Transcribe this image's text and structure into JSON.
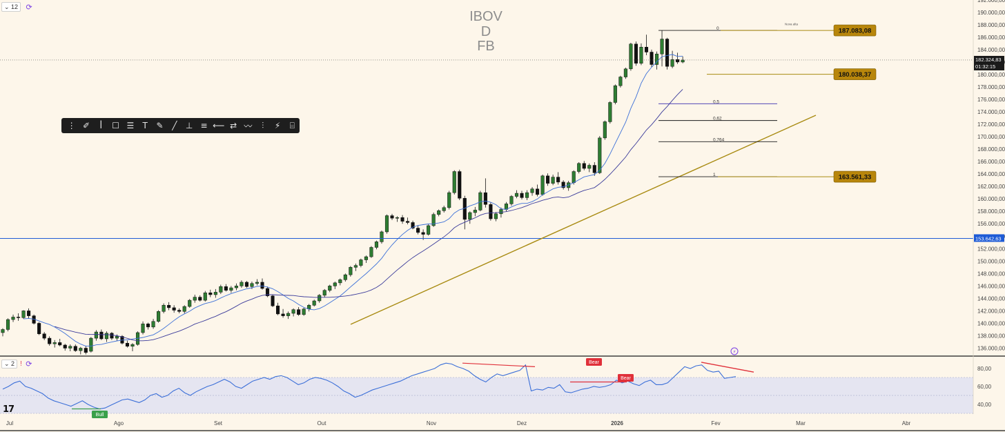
{
  "header": {
    "interval_badge": "12",
    "sync_icon": "sync-icon"
  },
  "watermark": {
    "line1": "IBOV",
    "line2": "D",
    "line3": "FB"
  },
  "toolbar": {
    "icons": [
      "drag-handle-icon",
      "brush-icon",
      "fib-icon",
      "rectangle-icon",
      "channel-icon",
      "text-icon",
      "path-icon",
      "ray-icon",
      "measure-icon",
      "horizontal-lines-icon",
      "arrow-left-icon",
      "range-icon",
      "zigzag-icon",
      "projection-icon",
      "magic-wand-icon",
      "template-icon"
    ],
    "glyphs": [
      "⋮",
      "✐",
      "ꟾ",
      "☐",
      "☰",
      "T",
      "✎",
      "╱",
      "⊥",
      "≡",
      "⟵",
      "⇄",
      "〰",
      "⫶",
      "⚡",
      "⌸"
    ]
  },
  "colors": {
    "background": "#fdf6ea",
    "bull_candle": "#2e7d32",
    "bear_candle": "#111111",
    "fast_ma": "#3b6fd8",
    "slow_ma": "#3a3a9a",
    "trendline": "#a88a10",
    "price_label": "#b8860b",
    "blue_level": "#1e5bd6",
    "rsi_line": "#3b6fd8",
    "rsi_band": "#dfe1f3",
    "divergence": "#e0303a",
    "bull_label": "#3aa04a"
  },
  "price_axis": {
    "labels": [
      "192.000,00",
      "190.000,00",
      "188.000,00",
      "186.000,00",
      "184.000,00",
      "182.000,00",
      "180.000,00",
      "178.000,00",
      "176.000,00",
      "174.000,00",
      "172.000,00",
      "170.000,00",
      "168.000,00",
      "166.000,00",
      "164.000,00",
      "162.000,00",
      "160.000,00",
      "158.000,00",
      "156.000,00",
      "154.000,00",
      "152.000,00",
      "150.000,00",
      "148.000,00",
      "146.000,00",
      "144.000,00",
      "142.000,00",
      "140.000,00",
      "138.000,00",
      "136.000,00"
    ],
    "current_price": "182.324,83",
    "countdown": "01:32:15",
    "blue_level_label": "153.642,63"
  },
  "rsi_axis": {
    "labels": [
      "80,00",
      "60,00",
      "40,00"
    ]
  },
  "time_axis": {
    "labels": [
      "Jul",
      "Ago",
      "Set",
      "Out",
      "Nov",
      "Dez",
      "2026",
      "Fev",
      "Mar",
      "Abr"
    ]
  },
  "fib_levels": [
    {
      "ratio": "0",
      "value": 187083.08
    },
    {
      "ratio": "0,5",
      "value": 175300
    },
    {
      "ratio": "0,62",
      "value": 172600
    },
    {
      "ratio": "0,764",
      "value": 169200
    },
    {
      "ratio": "1",
      "value": 163561.33
    }
  ],
  "price_tags": [
    "187.083,08",
    "180.038,37",
    "163.561,33"
  ],
  "rsi_tags": {
    "bear1": "Bear",
    "bear2": "Bear",
    "bull": "Bull"
  },
  "small_notes": {
    "top_note": "Nova alta"
  },
  "pane2": {
    "badge": "2"
  },
  "chart_data": {
    "type": "candlestick",
    "title": "IBOV",
    "timeframe": "D",
    "ylim": [
      135000,
      192500
    ],
    "rsi_ylim": [
      30,
      90
    ],
    "rsi_band": [
      30,
      70
    ],
    "candles": [
      [
        138500,
        139200,
        137900,
        139000
      ],
      [
        139000,
        140800,
        138700,
        140600
      ],
      [
        140600,
        141400,
        140200,
        141000
      ],
      [
        141000,
        141600,
        140400,
        140900
      ],
      [
        140900,
        142100,
        140700,
        142000
      ],
      [
        142000,
        142400,
        140800,
        141200
      ],
      [
        141200,
        141400,
        139800,
        140000
      ],
      [
        140000,
        140200,
        138100,
        138300
      ],
      [
        138300,
        138600,
        137300,
        137600
      ],
      [
        137600,
        137900,
        136400,
        136700
      ],
      [
        136700,
        137300,
        136100,
        136900
      ],
      [
        136900,
        137500,
        136300,
        136500
      ],
      [
        136500,
        136700,
        135600,
        136000
      ],
      [
        136000,
        136600,
        135500,
        136300
      ],
      [
        136300,
        136600,
        135400,
        135600
      ],
      [
        135600,
        136200,
        135000,
        136000
      ],
      [
        136000,
        136400,
        135000,
        135300
      ]
    ],
    "candles_2": [
      [
        135500,
        137800,
        135300,
        137600
      ],
      [
        137600,
        138900,
        137200,
        138600
      ],
      [
        138600,
        139000,
        137300,
        137500
      ],
      [
        137500,
        138700,
        137000,
        138400
      ],
      [
        138400,
        138600,
        137300,
        137600
      ],
      [
        137600,
        138200,
        137200,
        137900
      ],
      [
        137900,
        138100,
        136600,
        136800
      ],
      [
        136800,
        137200,
        136100,
        136300
      ],
      [
        136300,
        136800,
        135500,
        136600
      ],
      [
        136600,
        138700,
        136400,
        138500
      ],
      [
        138500,
        140300,
        138200,
        139900
      ],
      [
        139900,
        140100,
        139000,
        139400
      ],
      [
        139400,
        140700,
        139100,
        140300
      ],
      [
        140300,
        142100,
        140100,
        141900
      ],
      [
        141900,
        143200,
        141600,
        142900
      ],
      [
        142900,
        143400,
        142100,
        142500
      ],
      [
        142500,
        142900,
        141700,
        142100
      ],
      [
        142100,
        142400,
        141600,
        141900
      ],
      [
        141900,
        142900,
        141600,
        142700
      ],
      [
        142700,
        143900,
        142500,
        143700
      ],
      [
        143700,
        144600,
        143300,
        144200
      ],
      [
        144200,
        144500,
        143500,
        143700
      ],
      [
        143700,
        145200,
        143500,
        144900
      ],
      [
        144900,
        145400,
        144200,
        144600
      ],
      [
        144600,
        145500,
        144100,
        145000
      ],
      [
        145000,
        146200,
        144700,
        145900
      ],
      [
        145900,
        146300,
        145100,
        145300
      ],
      [
        145300,
        146000,
        144900,
        145700
      ],
      [
        145700,
        146400,
        145300,
        146000
      ],
      [
        146000,
        146900,
        145700,
        146600
      ],
      [
        146600,
        146800,
        145700,
        145900
      ],
      [
        145900,
        146700,
        145500,
        146400
      ],
      [
        146400,
        147100,
        146100,
        146600
      ],
      [
        146600,
        147200,
        145400,
        145600
      ],
      [
        145600,
        145900,
        144200,
        144400
      ],
      [
        144400,
        144600,
        142600,
        142800
      ],
      [
        142800,
        143300,
        141300,
        141500
      ],
      [
        141500,
        142300,
        140900,
        141200
      ],
      [
        141200,
        141900,
        140700,
        141600
      ],
      [
        141600,
        142400,
        141100,
        142200
      ],
      [
        142200,
        142600,
        141200,
        141400
      ],
      [
        141400,
        142500,
        141200,
        142300
      ],
      [
        142300,
        143100,
        141900,
        142900
      ],
      [
        142900,
        143800,
        142700,
        143600
      ],
      [
        143600,
        144700,
        143300,
        144500
      ],
      [
        144500,
        145500,
        144200,
        145300
      ],
      [
        145300,
        146200,
        145000,
        146000
      ],
      [
        146000,
        146700,
        145500,
        146500
      ],
      [
        146500,
        147200,
        146100,
        147000
      ],
      [
        147000,
        148000,
        146700,
        147800
      ],
      [
        147800,
        149200,
        147500,
        149000
      ],
      [
        149000,
        149600,
        148400,
        149300
      ],
      [
        149300,
        150400,
        149000,
        150200
      ],
      [
        150200,
        150900,
        149700,
        150700
      ],
      [
        150700,
        152400,
        150500,
        152200
      ],
      [
        152200,
        153300,
        151900,
        153100
      ],
      [
        153100,
        154900,
        152800,
        154700
      ],
      [
        154700,
        157500,
        154400,
        157300
      ],
      [
        157300,
        157600,
        156600,
        156900
      ],
      [
        156900,
        157200,
        156300,
        157000
      ],
      [
        157000,
        157400,
        156000,
        156400
      ],
      [
        156400,
        157000,
        155900,
        156200
      ],
      [
        156200,
        156500,
        155100,
        155300
      ],
      [
        155300,
        155700,
        154300,
        154600
      ],
      [
        154600,
        155100,
        153400,
        154300
      ],
      [
        154300,
        155900,
        154100,
        155700
      ],
      [
        155700,
        157800,
        155500,
        157500
      ],
      [
        157500,
        158300,
        157200,
        158100
      ],
      [
        158100,
        158900,
        157800,
        158600
      ],
      [
        158600,
        161300,
        158300,
        161000
      ],
      [
        161000,
        164600,
        160700,
        164400
      ],
      [
        164400,
        164700,
        159800,
        160100
      ],
      [
        160100,
        160500,
        155100,
        156700
      ],
      [
        156700,
        158000,
        156000,
        157800
      ],
      [
        157800,
        158700,
        157200,
        158200
      ],
      [
        158200,
        161300,
        158000,
        161000
      ],
      [
        161000,
        163300,
        158600,
        159100
      ],
      [
        159100,
        159400,
        156500,
        156800
      ],
      [
        156800,
        157900,
        156400,
        157600
      ],
      [
        157600,
        158600,
        157000,
        158300
      ],
      [
        158300,
        159500,
        158000,
        159200
      ],
      [
        159200,
        160600,
        158900,
        160400
      ],
      [
        160400,
        161400,
        160100,
        160900
      ],
      [
        160900,
        161300,
        159900,
        160200
      ],
      [
        160200,
        161400,
        159800,
        161000
      ],
      [
        161000,
        161900,
        160500,
        161600
      ],
      [
        161600,
        162300,
        160400,
        160700
      ],
      [
        160700,
        163900,
        160500,
        163700
      ],
      [
        163700,
        164100,
        162100,
        162500
      ],
      [
        162500,
        163900,
        162200,
        163500
      ],
      [
        163500,
        164300,
        162300,
        162700
      ],
      [
        162700,
        163000,
        161500,
        161800
      ],
      [
        161800,
        162900,
        161300,
        162600
      ],
      [
        162600,
        164600,
        162300,
        164400
      ],
      [
        164400,
        165900,
        164100,
        165700
      ],
      [
        165700,
        166100,
        164600,
        164900
      ],
      [
        164900,
        165700,
        164300,
        165400
      ],
      [
        165400,
        165900,
        163700,
        164200
      ],
      [
        164200,
        170100,
        164000,
        169800
      ],
      [
        169800,
        172600,
        169500,
        172400
      ],
      [
        172400,
        175700,
        172100,
        175500
      ],
      [
        175500,
        178400,
        175200,
        178200
      ],
      [
        178200,
        179800,
        177900,
        179600
      ],
      [
        179600,
        181100,
        179300,
        180900
      ],
      [
        180900,
        185100,
        180600,
        184900
      ],
      [
        184900,
        185300,
        181400,
        181800
      ],
      [
        181800,
        185000,
        181500,
        184400
      ],
      [
        184400,
        186400,
        183100,
        183600
      ],
      [
        183600,
        184000,
        181200,
        181600
      ],
      [
        181600,
        183700,
        180800,
        183300
      ],
      [
        183300,
        187083,
        181300,
        185700
      ],
      [
        185700,
        185900,
        180800,
        181300
      ],
      [
        181300,
        183800,
        181000,
        182400
      ],
      [
        182400,
        183500,
        181700,
        182000
      ],
      [
        182000,
        182900,
        181800,
        182325
      ]
    ],
    "rsi": [
      57,
      60,
      64,
      66,
      60,
      58,
      55,
      52,
      47,
      44,
      42,
      40,
      38,
      41,
      44,
      40,
      37,
      35,
      36,
      39,
      42,
      45,
      46,
      44,
      42,
      45,
      50,
      52,
      48,
      50,
      55,
      58,
      53,
      50,
      54,
      57,
      60,
      62,
      65,
      68,
      65,
      60,
      58,
      62,
      66,
      68,
      70,
      68,
      71,
      72,
      70,
      66,
      62,
      64,
      68,
      70,
      69,
      67,
      64,
      60,
      55,
      52,
      48,
      50,
      53,
      56,
      58,
      60,
      62,
      64,
      66,
      69,
      72,
      74,
      76,
      78,
      80,
      84,
      86,
      85,
      82,
      80,
      77,
      72,
      68,
      65,
      70,
      74,
      72,
      74,
      76,
      78,
      84,
      55,
      57,
      56,
      59,
      58,
      62,
      54,
      53,
      55,
      57,
      58,
      60,
      59,
      60,
      62,
      67,
      64,
      66,
      63,
      61,
      65,
      67,
      62,
      62,
      64,
      70,
      76,
      82,
      80,
      83,
      84,
      78,
      76,
      77,
      69,
      70,
      71
    ]
  }
}
